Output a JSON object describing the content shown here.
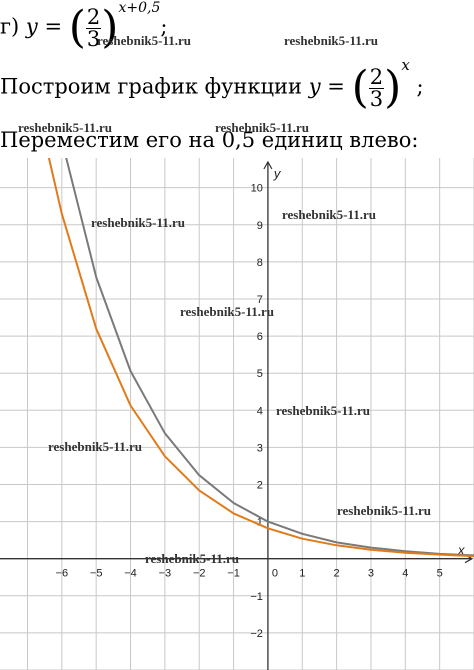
{
  "line1": {
    "prefix": "г)",
    "y": "y",
    "eq": "=",
    "num": "2",
    "den": "3",
    "exp": "x+0,5",
    "semicolon": ";"
  },
  "line2": {
    "text": "Построим график функции",
    "y": "y",
    "eq": "=",
    "num": "2",
    "den": "3",
    "exp": "x",
    "semicolon": ";"
  },
  "line3": {
    "text": "Переместим его на 0,5 единиц влево:"
  },
  "watermark": "reshebnik5-11.ru",
  "chart_data": {
    "type": "line",
    "xlabel": "x",
    "ylabel": "y",
    "xlim": [
      -7.8,
      6.0
    ],
    "ylim": [
      -3.0,
      10.8
    ],
    "x_ticks": [
      -6,
      -5,
      -4,
      -3,
      -2,
      -1,
      1,
      2,
      3,
      4,
      5
    ],
    "y_ticks": [
      10,
      9,
      8,
      7,
      6,
      5,
      4,
      3,
      2,
      1,
      -1,
      -2
    ],
    "origin_label": "0",
    "grid": true,
    "series": [
      {
        "formula": "(2/3)^x",
        "color": "#7a7a7a",
        "x": [
          -5.9,
          -5,
          -4,
          -3,
          -2,
          -1,
          0,
          1,
          2,
          3,
          4,
          5,
          6
        ],
        "y": [
          10.9,
          7.59,
          5.06,
          3.38,
          2.25,
          1.5,
          1.0,
          0.67,
          0.44,
          0.3,
          0.2,
          0.13,
          0.09
        ]
      },
      {
        "formula": "(2/3)^(x+0.5)",
        "color": "#e07b1a",
        "x": [
          -6.4,
          -6,
          -5,
          -4,
          -3,
          -2,
          -1,
          0,
          1,
          2,
          3,
          4,
          5,
          6
        ],
        "y": [
          10.9,
          9.3,
          6.2,
          4.13,
          2.76,
          1.84,
          1.22,
          0.82,
          0.54,
          0.36,
          0.24,
          0.16,
          0.11,
          0.07
        ]
      }
    ]
  }
}
